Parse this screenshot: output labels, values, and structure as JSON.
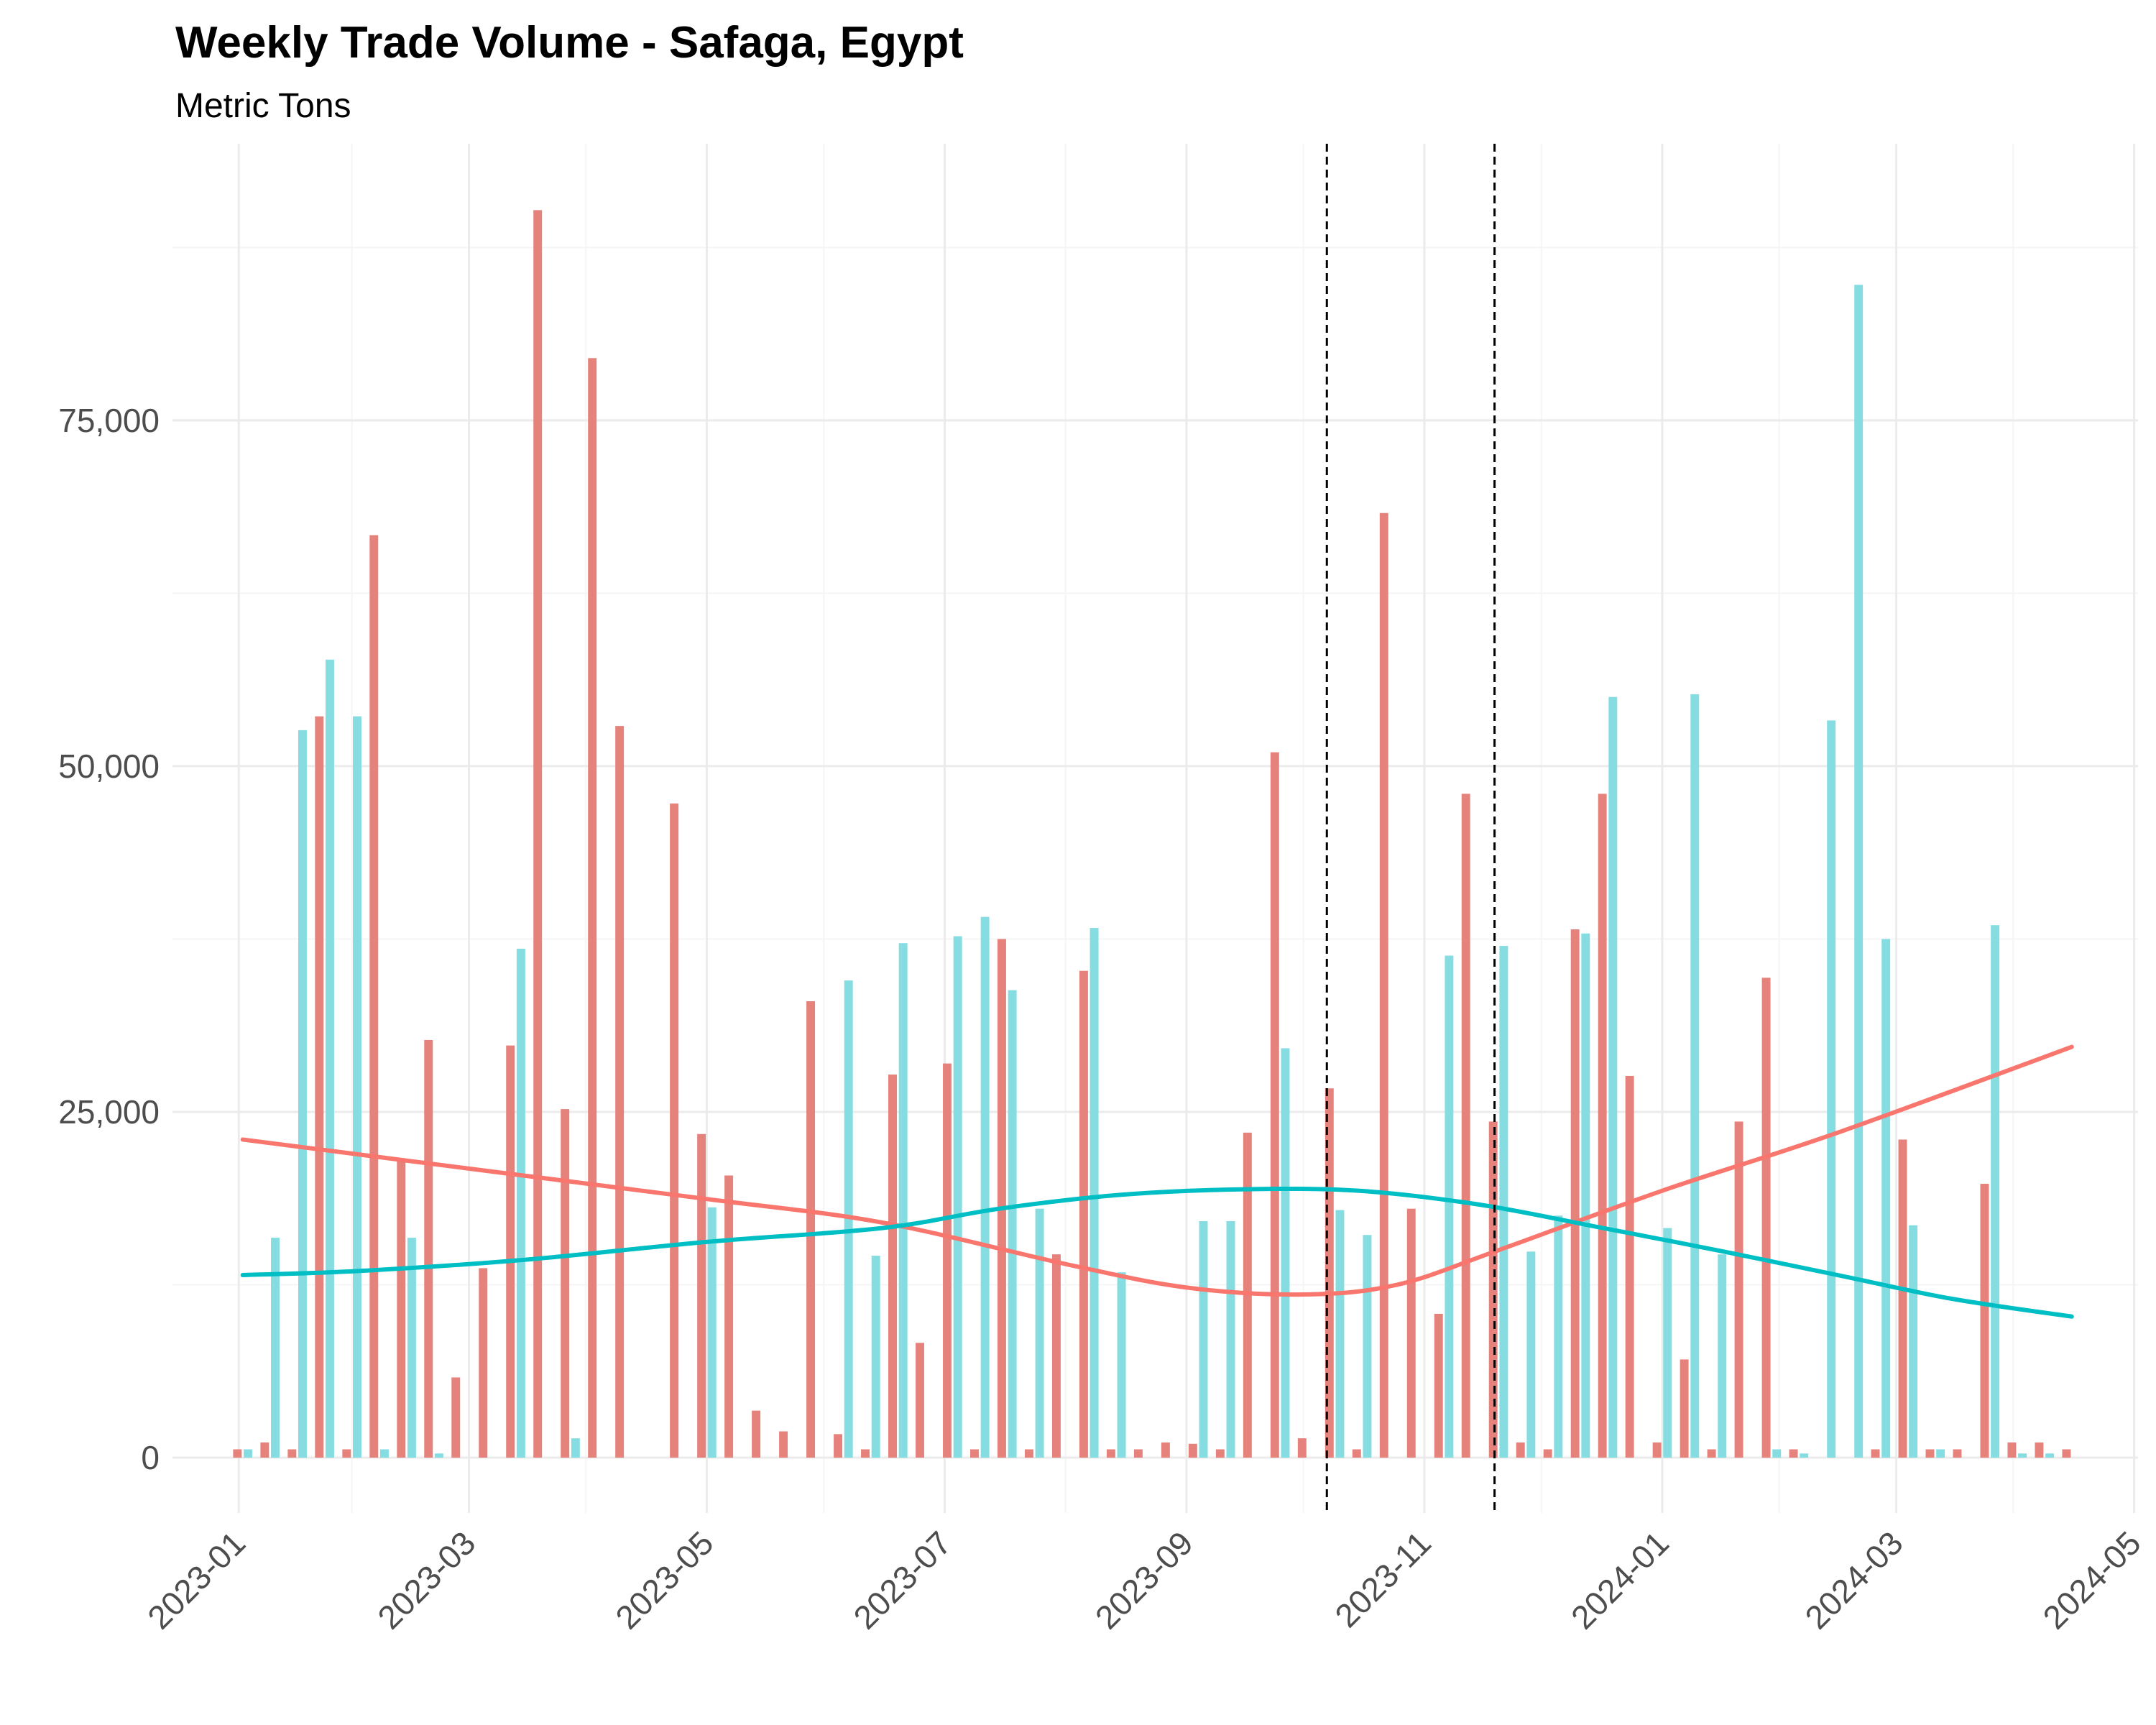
{
  "chart_data": {
    "type": "bar",
    "title": "Weekly Trade Volume - Safaga, Egypt",
    "subtitle": "Metric Tons",
    "xlabel": "",
    "ylabel": "",
    "ylim": [
      -4000,
      95000
    ],
    "xlim": [
      "2022-12-15",
      "2024-05-02"
    ],
    "y_ticks": [
      0,
      25000,
      50000,
      75000
    ],
    "y_tick_labels": [
      "0",
      "25,000",
      "50,000",
      "75,000"
    ],
    "x_ticks": [
      "2023-01-01",
      "2023-03-01",
      "2023-05-01",
      "2023-07-01",
      "2023-09-01",
      "2023-11-01",
      "2024-01-01",
      "2024-03-01",
      "2024-05-01"
    ],
    "x_tick_labels": [
      "2023-01",
      "2023-03",
      "2023-05",
      "2023-07",
      "2023-09",
      "2023-11",
      "2024-01",
      "2024-03",
      "2024-05"
    ],
    "grid": true,
    "legend": "none",
    "vlines": [
      "2023-10-07",
      "2023-11-19"
    ],
    "colors": {
      "series_a": "#F8766D",
      "series_b": "#00BFC4",
      "bar_a": "#E5827B",
      "bar_b": "#85DDE1",
      "vline": "#000000"
    },
    "series": [
      {
        "key": "a",
        "values": [
          [
            "2023-01-02",
            600
          ],
          [
            "2023-01-09",
            1100
          ],
          [
            "2023-01-16",
            600
          ],
          [
            "2023-01-23",
            53600
          ],
          [
            "2023-01-30",
            600
          ],
          [
            "2023-02-06",
            66700
          ],
          [
            "2023-02-13",
            21500
          ],
          [
            "2023-02-20",
            30200
          ],
          [
            "2023-02-27",
            5800
          ],
          [
            "2023-03-06",
            13700
          ],
          [
            "2023-03-13",
            29800
          ],
          [
            "2023-03-20",
            90200
          ],
          [
            "2023-03-27",
            25200
          ],
          [
            "2023-04-03",
            79500
          ],
          [
            "2023-04-10",
            52900
          ],
          [
            "2023-04-24",
            47300
          ],
          [
            "2023-05-01",
            23400
          ],
          [
            "2023-05-08",
            20400
          ],
          [
            "2023-05-15",
            3400
          ],
          [
            "2023-05-22",
            1900
          ],
          [
            "2023-05-29",
            33000
          ],
          [
            "2023-06-05",
            1700
          ],
          [
            "2023-06-12",
            600
          ],
          [
            "2023-06-19",
            27700
          ],
          [
            "2023-06-26",
            8300
          ],
          [
            "2023-07-03",
            28500
          ],
          [
            "2023-07-10",
            600
          ],
          [
            "2023-07-17",
            37500
          ],
          [
            "2023-07-24",
            600
          ],
          [
            "2023-07-31",
            14700
          ],
          [
            "2023-08-07",
            35200
          ],
          [
            "2023-08-14",
            600
          ],
          [
            "2023-08-21",
            600
          ],
          [
            "2023-08-28",
            1100
          ],
          [
            "2023-09-04",
            1000
          ],
          [
            "2023-09-11",
            600
          ],
          [
            "2023-09-18",
            23500
          ],
          [
            "2023-09-25",
            51000
          ],
          [
            "2023-10-02",
            1400
          ],
          [
            "2023-10-09",
            26700
          ],
          [
            "2023-10-16",
            600
          ],
          [
            "2023-10-23",
            68300
          ],
          [
            "2023-10-30",
            18000
          ],
          [
            "2023-11-06",
            10400
          ],
          [
            "2023-11-13",
            48000
          ],
          [
            "2023-11-20",
            24300
          ],
          [
            "2023-11-27",
            1100
          ],
          [
            "2023-12-04",
            600
          ],
          [
            "2023-12-11",
            38200
          ],
          [
            "2023-12-18",
            48000
          ],
          [
            "2023-12-25",
            27600
          ],
          [
            "2024-01-01",
            1100
          ],
          [
            "2024-01-08",
            7100
          ],
          [
            "2024-01-15",
            600
          ],
          [
            "2024-01-22",
            24300
          ],
          [
            "2024-01-29",
            34700
          ],
          [
            "2024-02-05",
            600
          ],
          [
            "2024-02-26",
            600
          ],
          [
            "2024-03-04",
            23000
          ],
          [
            "2024-03-11",
            600
          ],
          [
            "2024-03-18",
            600
          ],
          [
            "2024-03-25",
            19800
          ],
          [
            "2024-04-01",
            1100
          ],
          [
            "2024-04-08",
            1100
          ],
          [
            "2024-04-15",
            600
          ]
        ],
        "trend": [
          [
            "2023-01-02",
            23000
          ],
          [
            "2023-03-01",
            20900
          ],
          [
            "2023-05-01",
            18700
          ],
          [
            "2023-06-15",
            17000
          ],
          [
            "2023-08-01",
            14000
          ],
          [
            "2023-09-01",
            12300
          ],
          [
            "2023-10-01",
            11800
          ],
          [
            "2023-10-25",
            12500
          ],
          [
            "2023-11-20",
            15000
          ],
          [
            "2024-01-01",
            19300
          ],
          [
            "2024-02-15",
            23500
          ],
          [
            "2024-04-15",
            29700
          ]
        ]
      },
      {
        "key": "b",
        "values": [
          [
            "2023-01-02",
            600
          ],
          [
            "2023-01-09",
            15900
          ],
          [
            "2023-01-16",
            52600
          ],
          [
            "2023-01-23",
            57700
          ],
          [
            "2023-01-30",
            53600
          ],
          [
            "2023-02-06",
            600
          ],
          [
            "2023-02-13",
            15900
          ],
          [
            "2023-02-20",
            300
          ],
          [
            "2023-03-13",
            36800
          ],
          [
            "2023-03-27",
            1400
          ],
          [
            "2023-05-01",
            18100
          ],
          [
            "2023-06-05",
            34500
          ],
          [
            "2023-06-12",
            14600
          ],
          [
            "2023-06-19",
            37200
          ],
          [
            "2023-07-03",
            37700
          ],
          [
            "2023-07-10",
            39100
          ],
          [
            "2023-07-17",
            33800
          ],
          [
            "2023-07-24",
            18000
          ],
          [
            "2023-08-07",
            38300
          ],
          [
            "2023-08-14",
            13400
          ],
          [
            "2023-09-04",
            17100
          ],
          [
            "2023-09-11",
            17100
          ],
          [
            "2023-09-25",
            29600
          ],
          [
            "2023-10-09",
            17900
          ],
          [
            "2023-10-16",
            16100
          ],
          [
            "2023-11-06",
            36300
          ],
          [
            "2023-11-20",
            37000
          ],
          [
            "2023-11-27",
            14900
          ],
          [
            "2023-12-04",
            17500
          ],
          [
            "2023-12-11",
            37900
          ],
          [
            "2023-12-18",
            55000
          ],
          [
            "2024-01-01",
            16600
          ],
          [
            "2024-01-08",
            55200
          ],
          [
            "2024-01-15",
            14700
          ],
          [
            "2024-01-29",
            600
          ],
          [
            "2024-02-05",
            300
          ],
          [
            "2024-02-12",
            53300
          ],
          [
            "2024-02-19",
            84800
          ],
          [
            "2024-02-26",
            37500
          ],
          [
            "2024-03-04",
            16800
          ],
          [
            "2024-03-11",
            600
          ],
          [
            "2024-03-25",
            38500
          ],
          [
            "2024-04-01",
            300
          ],
          [
            "2024-04-08",
            300
          ]
        ],
        "trend": [
          [
            "2023-01-02",
            13200
          ],
          [
            "2023-02-01",
            13500
          ],
          [
            "2023-03-15",
            14300
          ],
          [
            "2023-05-01",
            15600
          ],
          [
            "2023-06-15",
            16600
          ],
          [
            "2023-07-15",
            18000
          ],
          [
            "2023-08-15",
            19000
          ],
          [
            "2023-09-15",
            19400
          ],
          [
            "2023-10-15",
            19300
          ],
          [
            "2023-11-15",
            18300
          ],
          [
            "2023-12-15",
            16700
          ],
          [
            "2024-01-15",
            15000
          ],
          [
            "2024-02-15",
            13200
          ],
          [
            "2024-03-15",
            11500
          ],
          [
            "2024-04-15",
            10200
          ]
        ]
      }
    ]
  }
}
